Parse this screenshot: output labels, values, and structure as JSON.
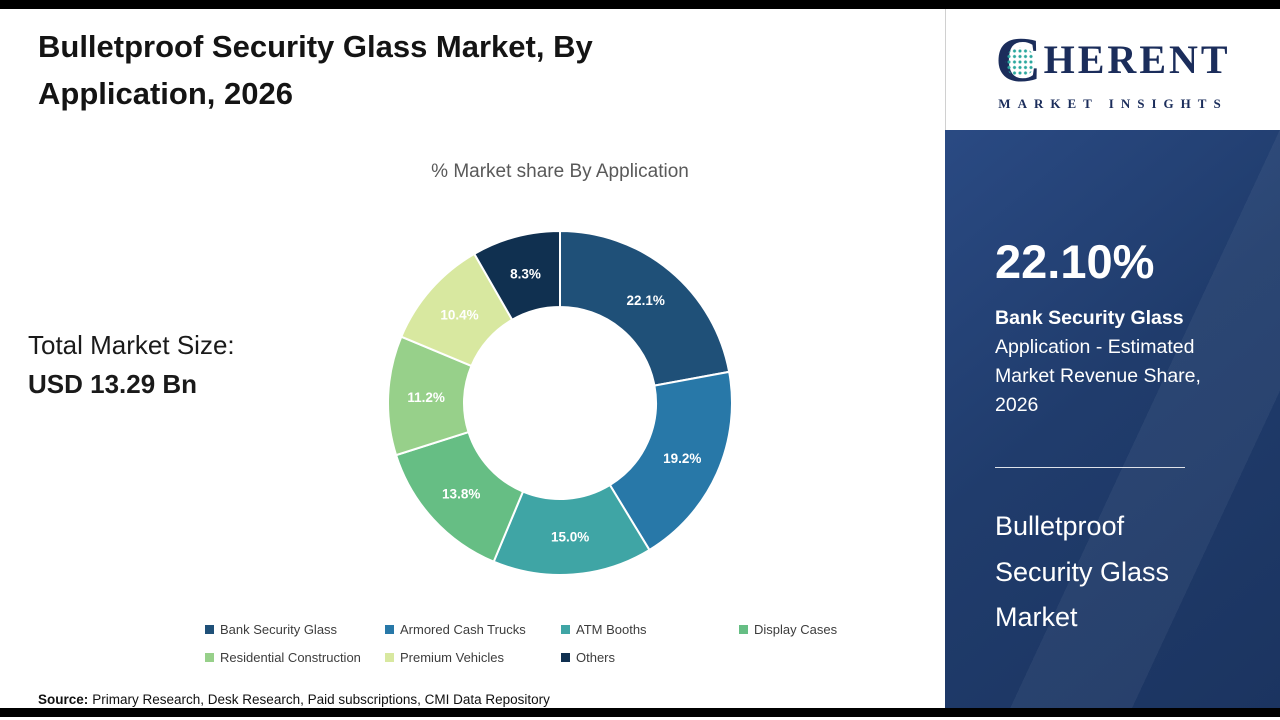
{
  "page": {
    "title": "Bulletproof Security Glass Market, By Application, 2026"
  },
  "chart": {
    "subtitle": "% Market share By Application"
  },
  "market_size": {
    "label": "Total Market Size:",
    "value": "USD 13.29 Bn"
  },
  "chart_data": {
    "type": "pie",
    "donut": true,
    "title": "% Market share By Application",
    "labels": [
      "Bank Security Glass",
      "Armored Cash Trucks",
      "ATM Booths",
      "Display Cases",
      "Residential Construction",
      "Premium Vehicles",
      "Others"
    ],
    "values": [
      22.1,
      19.2,
      15.0,
      13.8,
      11.2,
      10.4,
      8.3
    ],
    "colors": [
      "#1F5078",
      "#2878A8",
      "#3FA5A5",
      "#66BE84",
      "#97D08A",
      "#D8E8A0",
      "#103050"
    ],
    "legend_position": "bottom",
    "label_format": "percent",
    "start_angle_deg": 0,
    "direction": "clockwise"
  },
  "source": {
    "prefix": "Source:",
    "text": "Primary Research, Desk Research, Paid subscriptions, CMI Data Repository"
  },
  "logo": {
    "c": "C",
    "rest": "HERENT",
    "sub": "MARKET INSIGHTS",
    "navy": "#1b2d5b",
    "dot_teal": "#2ba89e"
  },
  "side_panel": {
    "stat_value": "22.10%",
    "stat_label_bold": "Bank Security Glass",
    "stat_label_rest": "Application - Estimated Market Revenue Share, 2026",
    "title": "Bulletproof Security Glass Market",
    "bg_color": "#203c6c"
  }
}
